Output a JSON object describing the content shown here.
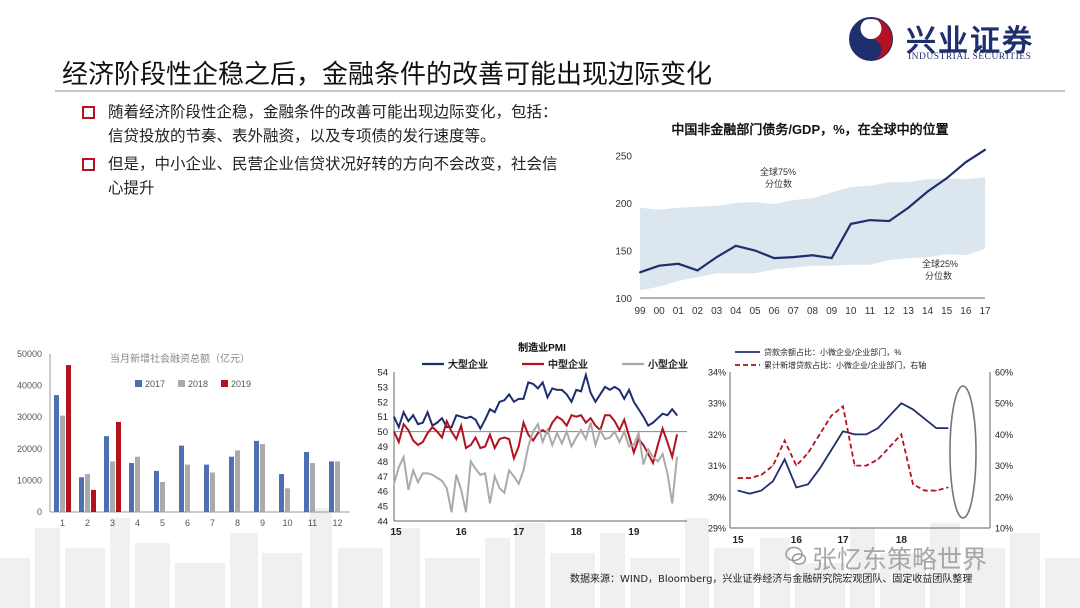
{
  "header": {
    "title": "经济阶段性企稳之后，金融条件的改善可能出现边际变化",
    "logo_cn": "兴业证券",
    "logo_en": "INDUSTRIAL SECURITIES"
  },
  "bullets": [
    "随着经济阶段性企稳，金融条件的改善可能出现边际变化，包括：信贷投放的节奏、表外融资，以及专项债的发行速度等。",
    "但是，中小企业、民营企业信贷状况好转的方向不会改变，社会信心提升"
  ],
  "footer": {
    "source": "数据来源：WIND，Bloomberg，兴业证券经济与金融研究院宏观团队、固定收益团队整理",
    "watermark": "张忆东策略世界"
  },
  "colors": {
    "navy": "#1f2f6e",
    "red": "#b3121e",
    "gray": "#aaaaaa",
    "band": "#dce6ee"
  },
  "chart_data": [
    {
      "id": "debt",
      "type": "area",
      "title": "中国非金融部门债务/GDP，%，在全球中的位置",
      "x": [
        "99",
        "00",
        "01",
        "02",
        "03",
        "04",
        "05",
        "06",
        "07",
        "08",
        "09",
        "10",
        "11",
        "12",
        "13",
        "14",
        "15",
        "16",
        "17"
      ],
      "ylim": [
        100,
        260
      ],
      "yticks": [
        100,
        150,
        200,
        250
      ],
      "series": [
        {
          "name": "中国",
          "values": [
            127,
            134,
            136,
            129,
            143,
            155,
            150,
            142,
            143,
            145,
            142,
            178,
            182,
            181,
            195,
            212,
            226,
            243,
            256
          ]
        },
        {
          "name": "全球75%分位数",
          "values": [
            195,
            193,
            195,
            196,
            197,
            200,
            201,
            199,
            203,
            205,
            211,
            217,
            218,
            222,
            222,
            225,
            226,
            225,
            227
          ]
        },
        {
          "name": "全球25%分位数",
          "values": [
            108,
            112,
            118,
            122,
            126,
            126,
            126,
            130,
            132,
            134,
            134,
            135,
            135,
            140,
            142,
            143,
            146,
            145,
            152
          ]
        }
      ],
      "annotations": [
        "全球75%",
        "分位数",
        "全球25%",
        "分位数"
      ]
    },
    {
      "id": "tsf",
      "type": "bar",
      "title": "当月新增社会融资总额（亿元）",
      "categories": [
        "1",
        "2",
        "3",
        "4",
        "5",
        "6",
        "7",
        "8",
        "9",
        "10",
        "11",
        "12"
      ],
      "ylim": [
        0,
        50000
      ],
      "yticks": [
        0,
        10000,
        20000,
        30000,
        40000,
        50000
      ],
      "series": [
        {
          "name": "2017",
          "color": "#4e6fb1",
          "values": [
            37000,
            11000,
            24000,
            15500,
            13000,
            21000,
            15000,
            17500,
            22500,
            12000,
            19000,
            16000
          ]
        },
        {
          "name": "2018",
          "color": "#aaaaaa",
          "values": [
            30500,
            12000,
            16000,
            17500,
            9500,
            15000,
            12500,
            19500,
            21500,
            7500,
            15500,
            16000
          ]
        },
        {
          "name": "2019",
          "color": "#b3121e",
          "values": [
            46500,
            7000,
            28500,
            null,
            null,
            null,
            null,
            null,
            null,
            null,
            null,
            null
          ]
        }
      ]
    },
    {
      "id": "pmi",
      "type": "line",
      "title": "制造业PMI",
      "ylim": [
        44,
        54
      ],
      "yticks": [
        44,
        45,
        46,
        47,
        48,
        49,
        50,
        51,
        52,
        53,
        54
      ],
      "xticks": [
        "15",
        "16",
        "17",
        "18",
        "19"
      ],
      "reference": 50,
      "series": [
        {
          "name": "大型企业",
          "color": "#1f2f6e",
          "values": [
            51.0,
            50.3,
            51.3,
            50.7,
            51.1,
            50.5,
            50.6,
            51.3,
            50.4,
            50.6,
            50.9,
            50.3,
            50.3,
            51.1,
            51.0,
            50.9,
            51.0,
            50.8,
            50.2,
            50.8,
            51.5,
            51.3,
            52.0,
            52.1,
            52.5,
            52.0,
            52.2,
            52.2,
            53.3,
            53.2,
            52.9,
            53.3,
            52.3,
            52.9,
            52.8,
            52.8,
            52.5,
            52.0,
            52.8,
            52.7,
            53.8,
            52.6,
            52.0,
            52.5,
            53.0,
            52.8,
            53.0,
            52.8,
            52.2,
            52.8,
            52.0,
            51.5,
            51.0,
            50.4,
            50.6,
            50.9,
            51.2,
            51.1,
            51.5,
            51.1
          ]
        },
        {
          "name": "中型企业",
          "color": "#b3121e",
          "values": [
            50.0,
            49.3,
            50.5,
            50.1,
            49.4,
            49.1,
            49.3,
            49.9,
            50.3,
            50.0,
            49.6,
            50.7,
            50.0,
            49.5,
            50.4,
            48.9,
            49.1,
            49.6,
            48.9,
            49.0,
            49.8,
            48.9,
            49.5,
            49.6,
            49.5,
            48.2,
            49.0,
            50.6,
            49.8,
            49.4,
            49.9,
            50.1,
            49.9,
            50.6,
            51.0,
            50.8,
            50.4,
            51.1,
            51.0,
            51.1,
            50.6,
            50.9,
            50.4,
            50.1,
            51.1,
            51.1,
            50.7,
            50.1,
            50.8,
            49.7,
            48.6,
            49.5,
            49.1,
            48.5,
            47.9,
            49.1,
            50.2,
            49.3,
            48.3,
            49.8
          ]
        },
        {
          "name": "小型企业",
          "color": "#aaaaaa",
          "values": [
            46.5,
            47.6,
            48.3,
            46.1,
            47.4,
            46.6,
            47.2,
            47.2,
            47.1,
            46.9,
            46.7,
            46.2,
            44.6,
            47.1,
            46.1,
            44.6,
            48.0,
            47.5,
            47.1,
            47.2,
            45.2,
            47.0,
            46.2,
            45.9,
            47.4,
            47.0,
            46.5,
            47.4,
            49.0,
            50.0,
            50.5,
            49.3,
            50.1,
            49.1,
            49.9,
            49.2,
            50.0,
            49.0,
            49.6,
            50.1,
            49.5,
            50.6,
            49.1,
            50.1,
            49.5,
            49.6,
            50.0,
            49.3,
            50.0,
            49.0,
            49.1,
            49.9,
            47.8,
            48.8,
            48.3,
            48.0,
            48.5,
            47.2,
            45.2,
            48.3
          ]
        }
      ]
    },
    {
      "id": "loan",
      "type": "line",
      "xticks": [
        "15",
        "16",
        "17",
        "18"
      ],
      "ylim_left": [
        29,
        34
      ],
      "yticks_left": [
        "29%",
        "30%",
        "31%",
        "32%",
        "33%",
        "34%"
      ],
      "ylim_right": [
        10,
        60
      ],
      "yticks_right": [
        "10%",
        "20%",
        "30%",
        "40%",
        "50%",
        "60%"
      ],
      "series": [
        {
          "name": "贷款余额占比：小微企业/企业部门，%",
          "axis": "left",
          "style": "solid",
          "color": "#1f2f6e",
          "values": [
            30.2,
            30.1,
            30.2,
            30.5,
            31.2,
            30.3,
            30.4,
            30.9,
            31.5,
            32.1,
            32.0,
            32.0,
            32.2,
            32.6,
            33.0,
            32.8,
            32.5,
            32.2,
            32.2
          ]
        },
        {
          "name": "累计新增贷款占比：小微企业/企业部门，右轴",
          "axis": "right",
          "style": "dashed",
          "color": "#b3121e",
          "values": [
            26,
            26,
            27,
            30,
            38,
            30,
            34,
            40,
            46,
            49,
            30,
            30,
            32,
            36,
            40,
            24,
            22,
            22,
            23
          ]
        }
      ]
    }
  ]
}
